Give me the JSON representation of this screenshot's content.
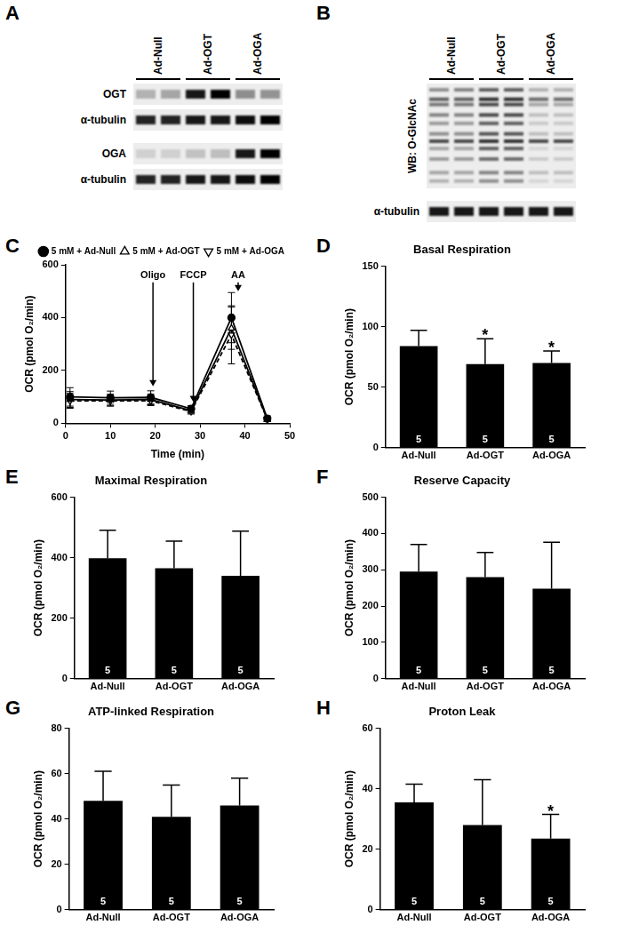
{
  "blots": [
    {
      "panel": "A",
      "lanes": [
        "Ad-Null",
        "Ad-OGT",
        "Ad-OGA"
      ],
      "replicates": 2,
      "blocks": [
        [
          {
            "label": "OGT",
            "bands": [
              {
                "migration": 0.5,
                "intensities": [
                  0.25,
                  0.3,
                  0.9,
                  1.0,
                  0.4,
                  0.38
                ]
              }
            ]
          },
          {
            "label": "α-tubulin",
            "bands": [
              {
                "migration": 0.5,
                "intensities": [
                  0.85,
                  0.85,
                  0.9,
                  0.9,
                  0.95,
                  1.0
                ]
              }
            ]
          }
        ],
        [
          {
            "label": "OGA",
            "bands": [
              {
                "migration": 0.5,
                "intensities": [
                  0.12,
                  0.12,
                  0.18,
                  0.2,
                  0.9,
                  1.0
                ]
              }
            ]
          },
          {
            "label": "α-tubulin",
            "bands": [
              {
                "migration": 0.5,
                "intensities": [
                  0.85,
                  0.85,
                  0.9,
                  0.9,
                  0.95,
                  1.0
                ]
              }
            ]
          }
        ]
      ]
    },
    {
      "panel": "B",
      "lanes": [
        "Ad-Null",
        "Ad-OGT",
        "Ad-OGA"
      ],
      "replicates": 2,
      "blocks": [
        [
          {
            "label": "WB: O-GlcNAc",
            "bands": [
              {
                "migration": 0.06,
                "intensities": [
                  0.4,
                  0.45,
                  0.6,
                  0.6,
                  0.25,
                  0.25
                ]
              },
              {
                "migration": 0.15,
                "intensities": [
                  0.6,
                  0.6,
                  0.8,
                  0.8,
                  0.55,
                  0.55
                ]
              },
              {
                "migration": 0.2,
                "intensities": [
                  0.5,
                  0.5,
                  0.7,
                  0.7,
                  0.3,
                  0.3
                ]
              },
              {
                "migration": 0.3,
                "intensities": [
                  0.45,
                  0.45,
                  0.7,
                  0.7,
                  0.2,
                  0.2
                ]
              },
              {
                "migration": 0.38,
                "intensities": [
                  0.35,
                  0.35,
                  0.6,
                  0.6,
                  0.15,
                  0.15
                ]
              },
              {
                "migration": 0.48,
                "intensities": [
                  0.4,
                  0.4,
                  0.65,
                  0.65,
                  0.2,
                  0.2
                ]
              },
              {
                "migration": 0.55,
                "intensities": [
                  0.7,
                  0.7,
                  0.8,
                  0.8,
                  0.7,
                  0.7
                ]
              },
              {
                "migration": 0.62,
                "intensities": [
                  0.3,
                  0.3,
                  0.6,
                  0.6,
                  0.1,
                  0.1
                ]
              },
              {
                "migration": 0.72,
                "intensities": [
                  0.35,
                  0.35,
                  0.55,
                  0.55,
                  0.15,
                  0.15
                ]
              },
              {
                "migration": 0.85,
                "intensities": [
                  0.3,
                  0.3,
                  0.45,
                  0.45,
                  0.2,
                  0.2
                ]
              },
              {
                "migration": 0.93,
                "intensities": [
                  0.25,
                  0.25,
                  0.4,
                  0.4,
                  0.1,
                  0.1
                ]
              }
            ]
          }
        ],
        [
          {
            "label": "α-tubulin",
            "bands": [
              {
                "migration": 0.5,
                "intensities": [
                  0.9,
                  0.9,
                  0.9,
                  0.9,
                  0.9,
                  0.9
                ]
              }
            ]
          }
        ]
      ]
    }
  ],
  "chart_data": [
    {
      "panel": "C",
      "type": "line",
      "x": [
        1,
        10,
        19,
        28,
        37,
        45
      ],
      "series": [
        {
          "name": "5 mM + Ad-Null",
          "color": "#000000",
          "marker": "circle",
          "line_style": "solid",
          "values": [
            100,
            97,
            98,
            55,
            400,
            18
          ],
          "errors": [
            35,
            25,
            25,
            12,
            95,
            10
          ]
        },
        {
          "name": "5 mM + Ad-OGT",
          "color": "#000000",
          "marker": "triangle-open",
          "line_style": "solid",
          "values": [
            90,
            88,
            90,
            48,
            360,
            15
          ],
          "errors": [
            30,
            22,
            20,
            10,
            80,
            8
          ]
        },
        {
          "name": "5 mM + Ad-OGA",
          "color": "#000000",
          "marker": "triangle-down-open",
          "line_style": "dashed",
          "values": [
            85,
            85,
            85,
            45,
            335,
            15
          ],
          "errors": [
            28,
            20,
            18,
            10,
            110,
            8
          ]
        }
      ],
      "xlim": [
        0,
        50
      ],
      "xticks": [
        0,
        10,
        20,
        30,
        40,
        50
      ],
      "ylim": [
        0,
        600
      ],
      "yticks": [
        0,
        200,
        400,
        600
      ],
      "x_label": "Time (min)",
      "y_label": "OCR (pmol O₂/min)",
      "legend": "upper right",
      "grid": false,
      "annotations": [
        {
          "text": "Oligo",
          "x": 19.5,
          "y": 540,
          "arrow_to": 140
        },
        {
          "text": "FCCP",
          "x": 28.5,
          "y": 540,
          "arrow_to": 80
        },
        {
          "text": "AA",
          "x": 38.5,
          "y": 540,
          "arrow_to": 500
        }
      ]
    },
    {
      "panel": "D",
      "type": "bar",
      "title": "Basal Respiration",
      "categories": [
        "Ad-Null",
        "Ad-OGT",
        "Ad-OGA"
      ],
      "values": [
        84,
        69,
        70
      ],
      "errors": [
        13,
        21,
        10
      ],
      "n": [
        5,
        5,
        5
      ],
      "significance": [
        null,
        "*",
        "*"
      ],
      "color": "#000000",
      "ylim": [
        0,
        150
      ],
      "yticks": [
        0,
        50,
        100,
        150
      ],
      "y_label": "OCR (pmol O₂/min)",
      "grid": false
    },
    {
      "panel": "E",
      "type": "bar",
      "title": "Maximal Respiration",
      "categories": [
        "Ad-Null",
        "Ad-OGT",
        "Ad-OGA"
      ],
      "values": [
        398,
        365,
        340
      ],
      "errors": [
        93,
        90,
        148
      ],
      "n": [
        5,
        5,
        5
      ],
      "color": "#000000",
      "ylim": [
        0,
        600
      ],
      "yticks": [
        0,
        200,
        400,
        600
      ],
      "y_label": "OCR (pmol O₂/min)",
      "grid": false
    },
    {
      "panel": "F",
      "type": "bar",
      "title": "Reserve Capacity",
      "categories": [
        "Ad-Null",
        "Ad-OGT",
        "Ad-OGA"
      ],
      "values": [
        295,
        280,
        248
      ],
      "errors": [
        75,
        68,
        128
      ],
      "n": [
        5,
        5,
        5
      ],
      "color": "#000000",
      "ylim": [
        0,
        500
      ],
      "yticks": [
        0,
        100,
        200,
        300,
        400,
        500
      ],
      "y_label": "OCR (pmol O₂/min)",
      "grid": false
    },
    {
      "panel": "G",
      "type": "bar",
      "title": "ATP-linked Respiration",
      "categories": [
        "Ad-Null",
        "Ad-OGT",
        "Ad-OGA"
      ],
      "values": [
        48,
        41,
        46
      ],
      "errors": [
        13,
        14,
        12
      ],
      "n": [
        5,
        5,
        5
      ],
      "color": "#000000",
      "ylim": [
        0,
        80
      ],
      "yticks": [
        0,
        20,
        40,
        60,
        80
      ],
      "y_label": "OCR (pmol O₂/min)",
      "grid": false
    },
    {
      "panel": "H",
      "type": "bar",
      "title": "Proton Leak",
      "categories": [
        "Ad-Null",
        "Ad-OGT",
        "Ad-OGA"
      ],
      "values": [
        35.5,
        28,
        23.5
      ],
      "errors": [
        6,
        15,
        8
      ],
      "n": [
        5,
        5,
        5
      ],
      "significance": [
        null,
        null,
        "*"
      ],
      "color": "#000000",
      "ylim": [
        0,
        60
      ],
      "yticks": [
        0,
        20,
        40,
        60
      ],
      "y_label": "OCR (pmol O₂/min)",
      "grid": false
    }
  ]
}
